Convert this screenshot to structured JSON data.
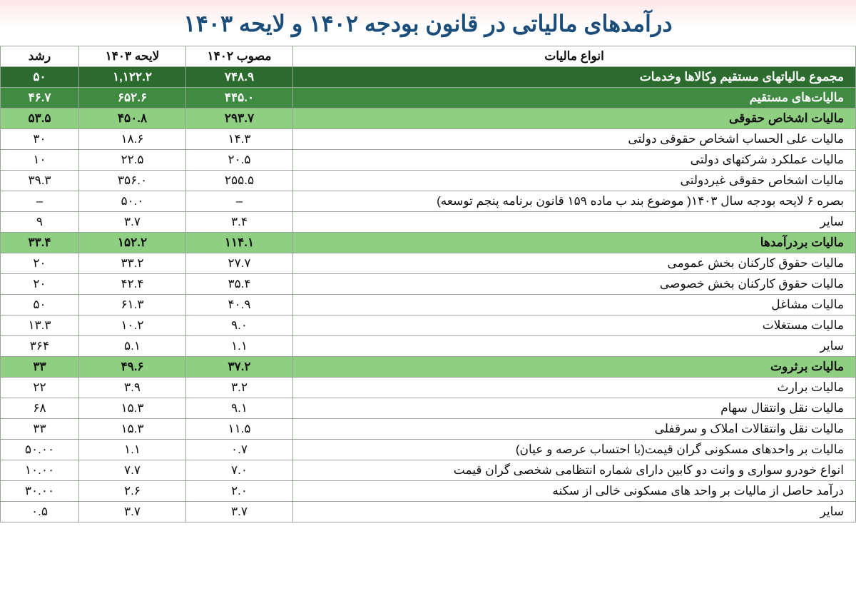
{
  "title": "درآمدهای مالیاتی در قانون بودجه ۱۴۰۲ و لایحه ۱۴۰۳",
  "headers": {
    "types": "انواع مالیات",
    "approved": "مصوب ۱۴۰۲",
    "bill": "لایحه ۱۴۰۳",
    "growth": "رشد"
  },
  "rows": [
    {
      "cls": "level0",
      "label": "مجموع مالیاتهای مستقیم وکالاها وخدمات",
      "approved": "۷۴۸.۹",
      "bill": "۱,۱۲۲.۲",
      "growth": "۵۰"
    },
    {
      "cls": "level1",
      "label": "مالیات‌های مستقیم",
      "approved": "۴۴۵.۰",
      "bill": "۶۵۲.۶",
      "growth": "۴۶.۷"
    },
    {
      "cls": "level2",
      "label": "مالیات اشخاص حقوقی",
      "approved": "۲۹۳.۷",
      "bill": "۴۵۰.۸",
      "growth": "۵۳.۵"
    },
    {
      "cls": "plain",
      "label": "مالیات علی الحساب اشخاص حقوقی دولتی",
      "approved": "۱۴.۳",
      "bill": "۱۸.۶",
      "growth": "۳۰"
    },
    {
      "cls": "plain",
      "label": "مالیات عملکرد شرکتهای دولتی",
      "approved": "۲۰.۵",
      "bill": "۲۲.۵",
      "growth": "۱۰"
    },
    {
      "cls": "plain",
      "label": "مالیات اشخاص حقوقی غیردولتی",
      "approved": "۲۵۵.۵",
      "bill": "۳۵۶.۰",
      "growth": "۳۹.۳"
    },
    {
      "cls": "plain",
      "label": "بصره ۶ لایحه بودجه سال ۱۴۰۳( موضوع بند ب ماده ۱۵۹ قانون برنامه پنجم توسعه)",
      "approved": "–",
      "bill": "۵۰.۰",
      "growth": "–"
    },
    {
      "cls": "plain",
      "label": "سایر",
      "approved": "۳.۴",
      "bill": "۳.۷",
      "growth": "۹"
    },
    {
      "cls": "level2",
      "label": "مالیات بردرآمدها",
      "approved": "۱۱۴.۱",
      "bill": "۱۵۲.۲",
      "growth": "۳۳.۴"
    },
    {
      "cls": "plain",
      "label": "مالیات حقوق کارکنان بخش عمومی",
      "approved": "۲۷.۷",
      "bill": "۳۳.۲",
      "growth": "۲۰"
    },
    {
      "cls": "plain",
      "label": "مالیات حقوق کارکنان بخش خصوصی",
      "approved": "۳۵.۴",
      "bill": "۴۲.۴",
      "growth": "۲۰"
    },
    {
      "cls": "plain",
      "label": "مالیات مشاغل",
      "approved": "۴۰.۹",
      "bill": "۶۱.۳",
      "growth": "۵۰"
    },
    {
      "cls": "plain",
      "label": "مالیات مستغلات",
      "approved": "۹.۰",
      "bill": "۱۰.۲",
      "growth": "۱۳.۳"
    },
    {
      "cls": "plain",
      "label": "سایر",
      "approved": "۱.۱",
      "bill": "۵.۱",
      "growth": "۳۶۴"
    },
    {
      "cls": "level2",
      "label": "مالیات برثروت",
      "approved": "۳۷.۲",
      "bill": "۴۹.۶",
      "growth": "۳۳"
    },
    {
      "cls": "plain",
      "label": "مالیات برارث",
      "approved": "۳.۲",
      "bill": "۳.۹",
      "growth": "۲۲"
    },
    {
      "cls": "plain",
      "label": "مالیات نقل وانتقال سهام",
      "approved": "۹.۱",
      "bill": "۱۵.۳",
      "growth": "۶۸"
    },
    {
      "cls": "plain",
      "label": "مالیات نقل وانتقالات املاک و سرقفلی",
      "approved": "۱۱.۵",
      "bill": "۱۵.۳",
      "growth": "۳۳"
    },
    {
      "cls": "plain",
      "label": "مالیات بر واحدهای مسکونی گران قیمت(با احتساب عرصه و عیان)",
      "approved": "۰.۷",
      "bill": "۱.۱",
      "growth": "۵۰.۰۰"
    },
    {
      "cls": "plain",
      "label": "انواع خودرو سواری و وانت دو کابین دارای شماره انتظامی شخصی گران قیمت",
      "approved": "۷.۰",
      "bill": "۷.۷",
      "growth": "۱۰.۰۰"
    },
    {
      "cls": "plain",
      "label": "درآمد حاصل از مالیات بر واحد های مسکونی خالی از سکنه",
      "approved": "۲.۰",
      "bill": "۲.۶",
      "growth": "۳۰.۰۰"
    },
    {
      "cls": "plain",
      "label": "سایر",
      "approved": "۳.۷",
      "bill": "۳.۷",
      "growth": "۰.۵"
    }
  ]
}
